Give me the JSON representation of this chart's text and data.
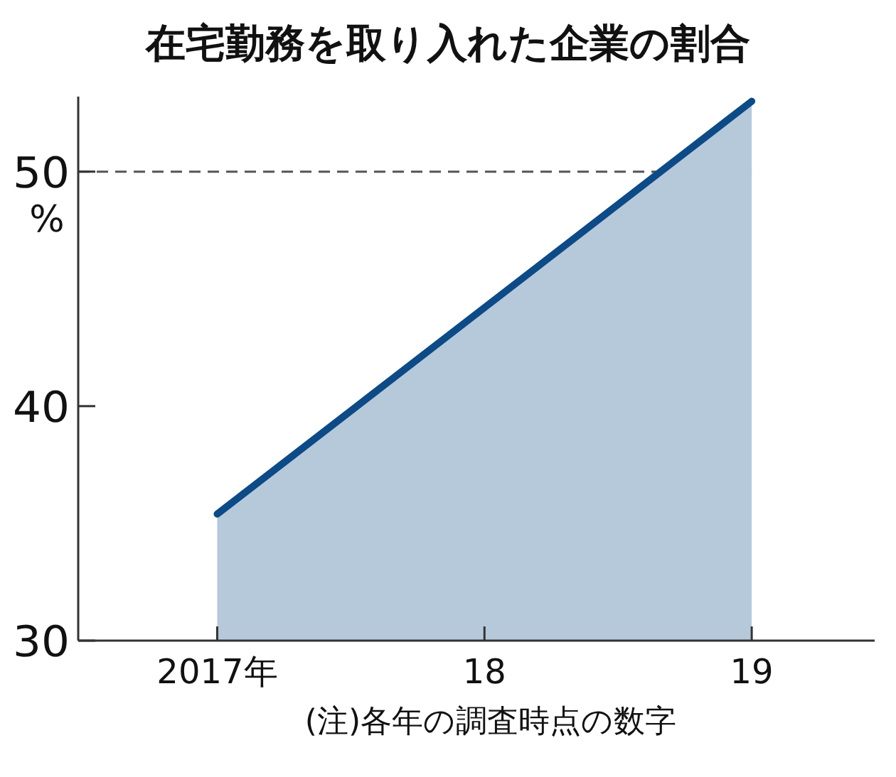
{
  "chart_data": {
    "type": "area",
    "title": "在宅勤務を取り入れた企業の割合",
    "ylabel": "%",
    "categories": [
      "2017年",
      "18",
      "19"
    ],
    "series": [
      {
        "color": "#0d4a86",
        "values": [
          35.4,
          44.2,
          53.0
        ]
      }
    ],
    "ylim": [
      30,
      53.2
    ],
    "yticks": [
      30,
      40,
      50
    ],
    "ref_lines": [
      {
        "axis": "y",
        "value": 50,
        "color": "#555555",
        "line_style": "dashed"
      }
    ],
    "annotations": [
      "(注)各年の調査時点の数字"
    ],
    "grid": false
  }
}
